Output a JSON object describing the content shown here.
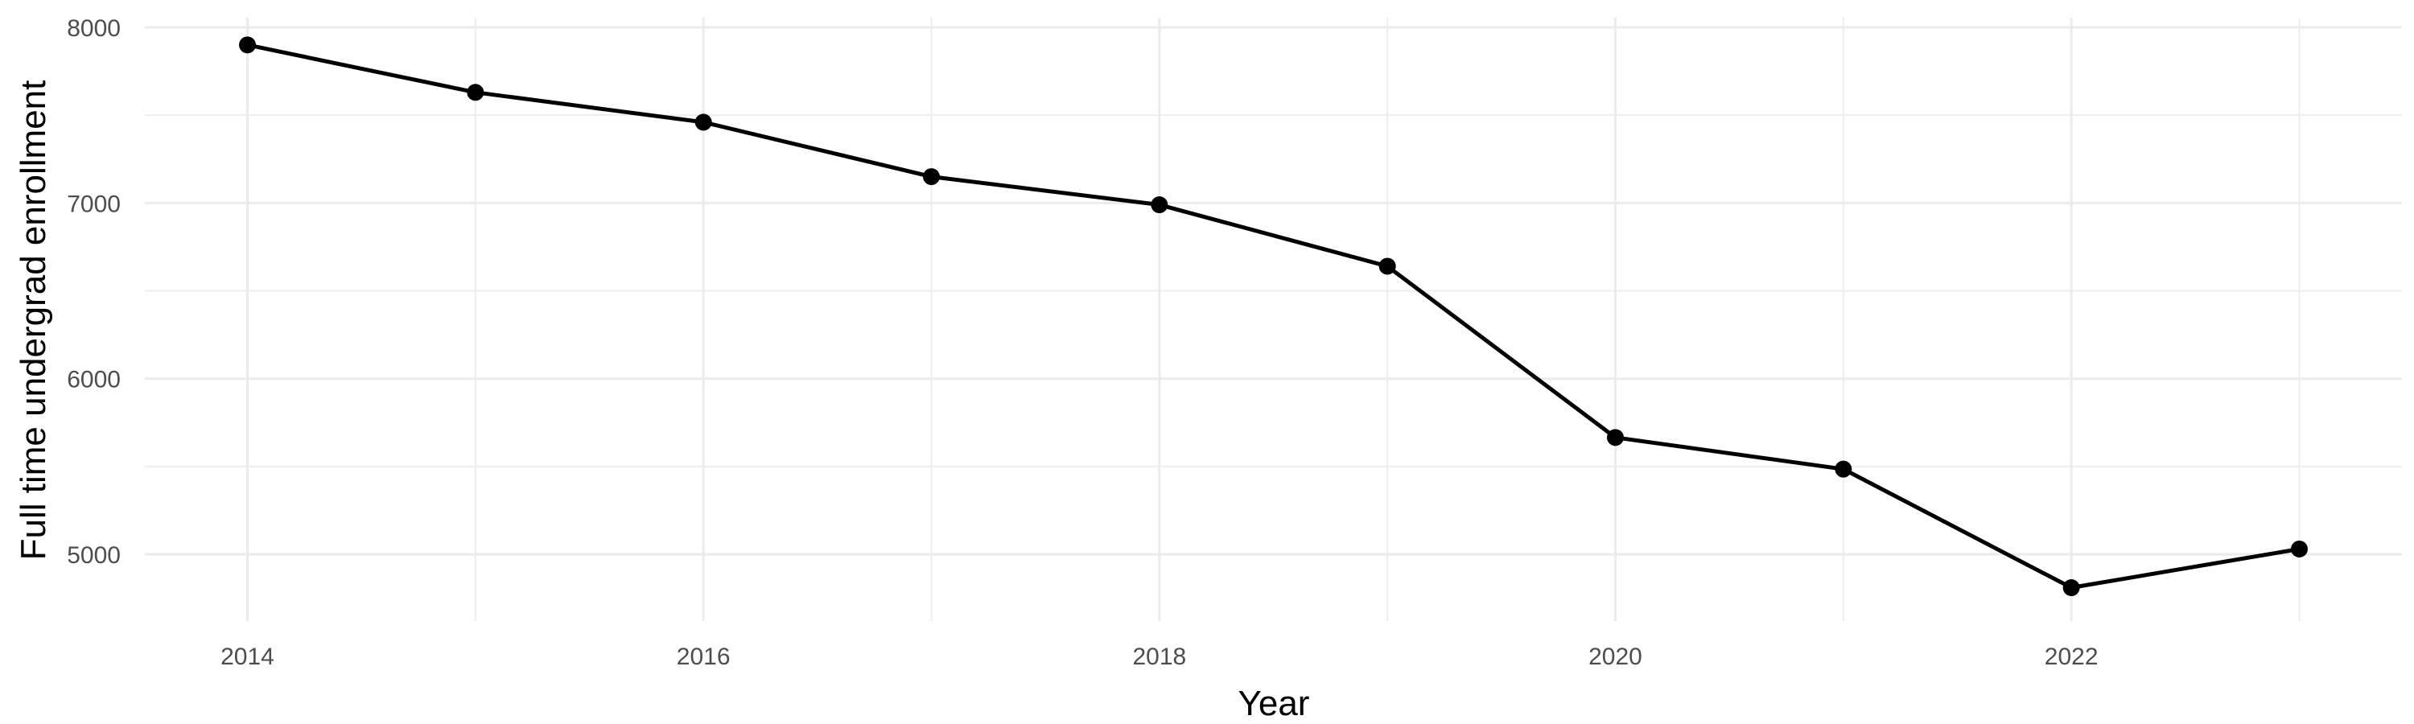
{
  "chart_data": {
    "type": "line",
    "title": "",
    "xlabel": "Year",
    "ylabel": "Full time undergrad enrollment",
    "x": [
      2014,
      2015,
      2016,
      2017,
      2018,
      2019,
      2020,
      2021,
      2022,
      2023
    ],
    "series": [
      {
        "name": "full_time_undergrad_enrollment",
        "values": [
          7900,
          7630,
          7460,
          7150,
          6990,
          6640,
          5665,
          5485,
          4810,
          5030
        ]
      }
    ],
    "xlim": [
      2013.55,
      2023.45
    ],
    "ylim": [
      4620,
      8055
    ],
    "x_ticks": [
      2014,
      2016,
      2018,
      2020,
      2022
    ],
    "y_ticks": [
      5000,
      6000,
      7000,
      8000
    ],
    "x_minor_ticks": [
      2015,
      2017,
      2019,
      2021,
      2023
    ],
    "y_minor_ticks": [
      5500,
      6500,
      7500
    ],
    "grid": "major and minor, no axis lines, no tick marks",
    "legend": "none",
    "style": {
      "background_color": "#FFFFFF",
      "grid_major_color": "#EBEBEB",
      "grid_minor_color": "#EDEDED",
      "line_color": "#000000",
      "point_color": "#000000",
      "tick_label_color": "#4D4D4D",
      "axis_title_color": "#000000"
    }
  }
}
